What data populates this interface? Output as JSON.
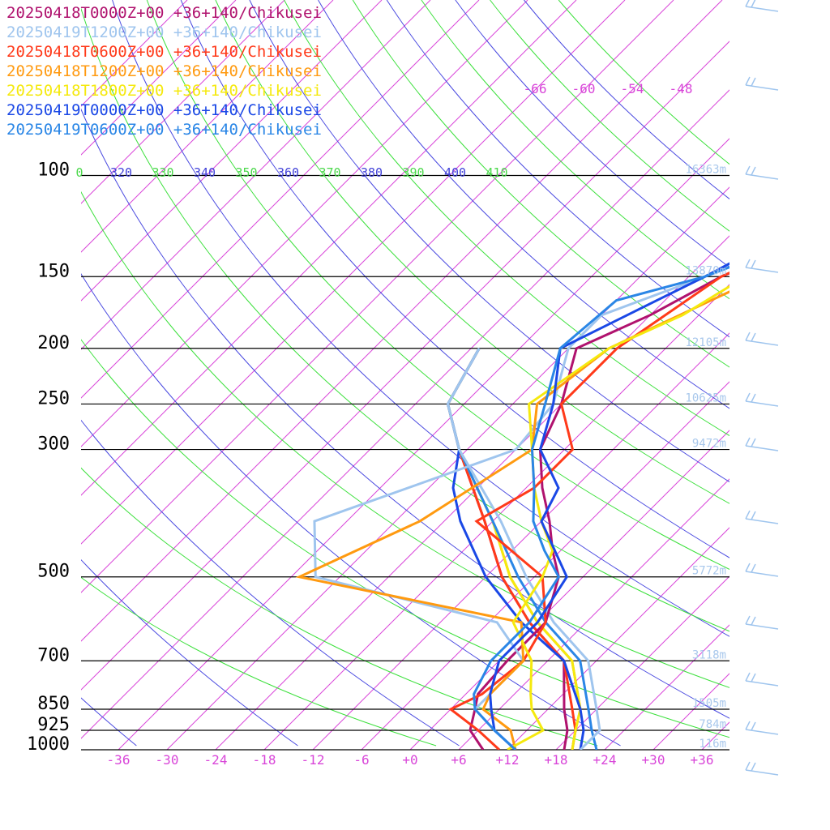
{
  "chart_data": {
    "type": "line",
    "subtype": "skew-t log-p sounding",
    "title": "",
    "xlabel": "",
    "ylabel": "",
    "series": [
      {
        "name": "20250418T0000Z+00 +36+140/Chikusei",
        "color": "#b0126e",
        "temperature": [
          [
            1000,
            9
          ],
          [
            925,
            5
          ],
          [
            850,
            3
          ],
          [
            800,
            1.5
          ],
          [
            700,
            1
          ],
          [
            600,
            1
          ],
          [
            500,
            -3
          ],
          [
            450,
            -7
          ],
          [
            400,
            -11
          ],
          [
            350,
            -16
          ],
          [
            300,
            -21
          ],
          [
            250,
            -24
          ],
          [
            200,
            -29
          ],
          [
            175,
            -24
          ],
          [
            150,
            -20
          ],
          [
            125,
            -12
          ],
          [
            100,
            -10
          ],
          [
            80,
            -12
          ],
          [
            70,
            -20
          ]
        ]
      },
      {
        "name": "20250419T1200Z+00 +36+140/Chikusei",
        "color": "#9fc5ee",
        "temperature": [
          [
            1000,
            13
          ],
          [
            925,
            8
          ],
          [
            850,
            3
          ],
          [
            800,
            3
          ],
          [
            700,
            3
          ],
          [
            600,
            -5
          ],
          [
            500,
            -33
          ],
          [
            400,
            -40
          ],
          [
            300,
            -24
          ],
          [
            250,
            -25
          ],
          [
            200,
            -30
          ],
          [
            175,
            -30
          ],
          [
            150,
            -22
          ],
          [
            125,
            -17
          ],
          [
            100,
            -12
          ],
          [
            80,
            -12
          ],
          [
            70,
            -20
          ]
        ]
      },
      {
        "name": "20250418T0600Z+00 +36+140/Chikusei",
        "color": "#ff3a1a",
        "temperature": [
          [
            1000,
            11
          ],
          [
            925,
            6
          ],
          [
            850,
            0
          ],
          [
            800,
            2
          ],
          [
            700,
            3
          ],
          [
            600,
            1
          ],
          [
            500,
            -5
          ],
          [
            400,
            -20
          ],
          [
            350,
            -17
          ],
          [
            300,
            -17
          ],
          [
            250,
            -24
          ],
          [
            200,
            -24
          ],
          [
            150,
            -20
          ],
          [
            125,
            -13
          ],
          [
            100,
            -12
          ],
          [
            80,
            -12
          ],
          [
            70,
            -20
          ]
        ]
      },
      {
        "name": "20250418T1200Z+00 +36+140/Chikusei",
        "color": "#ff9a10",
        "temperature": [
          [
            1000,
            13
          ],
          [
            925,
            10
          ],
          [
            850,
            4
          ],
          [
            800,
            3
          ],
          [
            700,
            3
          ],
          [
            600,
            -2
          ],
          [
            500,
            -35
          ],
          [
            400,
            -27
          ],
          [
            300,
            -22
          ],
          [
            250,
            -27
          ],
          [
            200,
            -25
          ],
          [
            150,
            -15
          ],
          [
            125,
            -12
          ],
          [
            100,
            -10
          ],
          [
            80,
            -12
          ],
          [
            70,
            -20
          ]
        ]
      },
      {
        "name": "20250418T1800Z+00 +36+140/Chikusei",
        "color": "#f5e90e",
        "temperature": [
          [
            1000,
            12
          ],
          [
            925,
            14
          ],
          [
            850,
            10
          ],
          [
            800,
            8
          ],
          [
            700,
            4
          ],
          [
            600,
            -3
          ],
          [
            500,
            -5
          ],
          [
            450,
            -7
          ],
          [
            400,
            -12
          ],
          [
            350,
            -17
          ],
          [
            300,
            -22
          ],
          [
            250,
            -28
          ],
          [
            200,
            -25
          ],
          [
            175,
            -20
          ],
          [
            150,
            -17
          ],
          [
            125,
            -13
          ],
          [
            100,
            -10
          ],
          [
            80,
            -12
          ],
          [
            70,
            -20
          ]
        ]
      },
      {
        "name": "20250419T0000Z+00 +36+140/Chikusei",
        "color": "#1a48e6",
        "temperature": [
          [
            1000,
            13
          ],
          [
            925,
            8
          ],
          [
            850,
            5
          ],
          [
            800,
            3
          ],
          [
            700,
            0
          ],
          [
            600,
            0
          ],
          [
            500,
            -2
          ],
          [
            400,
            -12
          ],
          [
            350,
            -14
          ],
          [
            300,
            -21
          ],
          [
            250,
            -25
          ],
          [
            200,
            -31
          ],
          [
            165,
            -25
          ],
          [
            150,
            -22
          ],
          [
            125,
            -17
          ],
          [
            100,
            -14
          ],
          [
            80,
            -12
          ],
          [
            70,
            -20
          ]
        ]
      },
      {
        "name": "20250419T0600Z+00 +36+140/Chikusei",
        "color": "#2a86e6",
        "temperature": [
          [
            1000,
            13
          ],
          [
            925,
            8
          ],
          [
            850,
            3
          ],
          [
            800,
            1
          ],
          [
            700,
            -1
          ],
          [
            600,
            -1
          ],
          [
            500,
            -3
          ],
          [
            450,
            -8
          ],
          [
            400,
            -13
          ],
          [
            350,
            -17
          ],
          [
            300,
            -22
          ],
          [
            250,
            -26
          ],
          [
            200,
            -31
          ],
          [
            165,
            -30
          ],
          [
            150,
            -22
          ],
          [
            125,
            -13
          ],
          [
            100,
            -13
          ],
          [
            80,
            -12
          ],
          [
            70,
            -20
          ]
        ]
      }
    ],
    "series_profile2": [
      {
        "name": "20250418T0000Z+00 +36+140/Chikusei",
        "values": [
          [
            1000,
            19
          ],
          [
            925,
            17
          ],
          [
            850,
            14
          ],
          [
            700,
            8
          ],
          [
            600,
            -1
          ],
          [
            500,
            -10
          ],
          [
            400,
            -19
          ],
          [
            300,
            -31
          ],
          [
            250,
            -38
          ],
          [
            200,
            -41
          ]
        ]
      },
      {
        "name": "20250418T0600Z+00 +36+140/Chikusei",
        "values": [
          [
            1000,
            20
          ],
          [
            925,
            18
          ],
          [
            850,
            15
          ],
          [
            700,
            8
          ],
          [
            600,
            -1
          ],
          [
            500,
            -10
          ],
          [
            400,
            -19
          ],
          [
            300,
            -31
          ],
          [
            250,
            -38
          ],
          [
            200,
            -41
          ]
        ]
      },
      {
        "name": "20250418T1200Z+00 +36+140/Chikusei",
        "values": [
          [
            1000,
            20
          ],
          [
            925,
            18
          ],
          [
            850,
            16
          ],
          [
            700,
            9
          ],
          [
            600,
            0
          ],
          [
            500,
            -9
          ],
          [
            400,
            -18
          ],
          [
            300,
            -31
          ],
          [
            250,
            -38
          ],
          [
            200,
            -41
          ]
        ]
      },
      {
        "name": "20250418T1800Z+00 +36+140/Chikusei",
        "values": [
          [
            1000,
            20
          ],
          [
            925,
            18
          ],
          [
            850,
            16
          ],
          [
            700,
            9
          ],
          [
            600,
            0
          ],
          [
            500,
            -9
          ],
          [
            400,
            -18
          ],
          [
            300,
            -31
          ],
          [
            250,
            -38
          ],
          [
            200,
            -41
          ]
        ]
      },
      {
        "name": "20250419T0000Z+00 +36+140/Chikusei",
        "values": [
          [
            1000,
            21
          ],
          [
            925,
            19
          ],
          [
            850,
            16
          ],
          [
            700,
            8
          ],
          [
            600,
            -2
          ],
          [
            500,
            -12
          ],
          [
            400,
            -22
          ],
          [
            350,
            -27
          ],
          [
            300,
            -31
          ],
          [
            250,
            -38
          ],
          [
            200,
            -41
          ]
        ]
      },
      {
        "name": "20250419T0600Z+00 +36+140/Chikusei",
        "values": [
          [
            1000,
            23
          ],
          [
            925,
            20
          ],
          [
            850,
            17
          ],
          [
            700,
            10
          ],
          [
            600,
            1
          ],
          [
            500,
            -8
          ],
          [
            400,
            -18
          ],
          [
            300,
            -31
          ],
          [
            250,
            -38
          ],
          [
            200,
            -41
          ]
        ]
      },
      {
        "name": "20250419T1200Z+00 +36+140/Chikusei",
        "values": [
          [
            1000,
            21
          ],
          [
            925,
            21
          ],
          [
            850,
            18
          ],
          [
            700,
            11
          ],
          [
            600,
            2
          ],
          [
            500,
            -7
          ],
          [
            400,
            -17
          ],
          [
            300,
            -31
          ],
          [
            250,
            -38
          ],
          [
            200,
            -41
          ]
        ]
      }
    ],
    "pressure_levels": [
      100,
      150,
      200,
      250,
      300,
      500,
      700,
      850,
      925,
      1000
    ],
    "pressure_labels": [
      "100",
      "150",
      "200",
      "250",
      "300",
      "500",
      "700",
      "850",
      "925",
      "1000"
    ],
    "height_labels": [
      {
        "p": 100,
        "label": "16363m"
      },
      {
        "p": 150,
        "label": "13870m"
      },
      {
        "p": 200,
        "label": "12105m"
      },
      {
        "p": 250,
        "label": "10625m"
      },
      {
        "p": 300,
        "label": "9472m"
      },
      {
        "p": 500,
        "label": "5772m"
      },
      {
        "p": 700,
        "label": "3118m"
      },
      {
        "p": 850,
        "label": "1505m"
      },
      {
        "p": 925,
        "label": "784m"
      },
      {
        "p": 1000,
        "label": "116m"
      }
    ],
    "x_ticks": [
      -36,
      -30,
      -24,
      -18,
      -12,
      -6,
      0,
      6,
      12,
      18,
      24,
      30,
      36
    ],
    "x_tick_labels": [
      "-36",
      "-30",
      "-24",
      "-18",
      "-12",
      "-6",
      "+0",
      "+6",
      "+12",
      "+18",
      "+24",
      "+30",
      "+36"
    ],
    "xlim": [
      -40,
      40
    ],
    "ylim": [
      1000,
      100
    ],
    "top_isotherm_labels": [
      {
        "t": -66,
        "label": "-66"
      },
      {
        "t": -60,
        "label": "-60"
      },
      {
        "t": -54,
        "label": "-54"
      },
      {
        "t": -48,
        "label": "-48"
      }
    ],
    "theta_labels": [
      "0",
      "320",
      "330",
      "340",
      "350",
      "360",
      "370",
      "380",
      "390",
      "400",
      "410"
    ],
    "theta_label_colors": [
      "#4ad84a",
      "#4040d8",
      "#4ad84a",
      "#4040d8",
      "#4ad84a",
      "#4040d8",
      "#4ad84a",
      "#4040d8",
      "#4ad84a",
      "#4040d8",
      "#4ad84a"
    ],
    "colors": {
      "isotherm": "#d946d9",
      "dry_adiabat": "#4a4ae0",
      "moist_adiabat": "#3ce03c",
      "isobar": "#000000",
      "height_label": "#a9c8ec",
      "wind_barb": "#9fc5ee",
      "axis_label": "#d946d9"
    },
    "wind_barbs": true
  }
}
